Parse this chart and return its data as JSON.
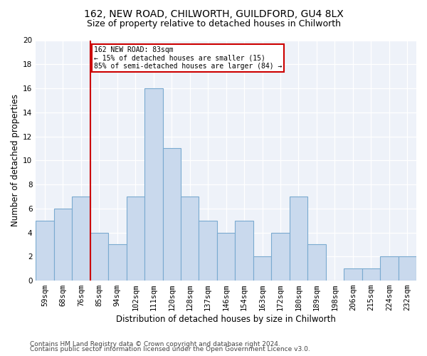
{
  "title": "162, NEW ROAD, CHILWORTH, GUILDFORD, GU4 8LX",
  "subtitle": "Size of property relative to detached houses in Chilworth",
  "xlabel": "Distribution of detached houses by size in Chilworth",
  "ylabel": "Number of detached properties",
  "categories": [
    "59sqm",
    "68sqm",
    "76sqm",
    "85sqm",
    "94sqm",
    "102sqm",
    "111sqm",
    "120sqm",
    "128sqm",
    "137sqm",
    "146sqm",
    "154sqm",
    "163sqm",
    "172sqm",
    "180sqm",
    "189sqm",
    "198sqm",
    "206sqm",
    "215sqm",
    "224sqm",
    "232sqm"
  ],
  "values": [
    5,
    6,
    7,
    4,
    3,
    7,
    16,
    11,
    7,
    5,
    4,
    5,
    2,
    4,
    7,
    3,
    0,
    1,
    1,
    2,
    2
  ],
  "bar_color": "#c9d9ed",
  "bar_edge_color": "#7aaad0",
  "bar_width": 1.0,
  "vline_x": 2.5,
  "vline_color": "#cc0000",
  "annotation_text": "162 NEW ROAD: 83sqm\n← 15% of detached houses are smaller (15)\n85% of semi-detached houses are larger (84) →",
  "annotation_box_color": "#cc0000",
  "ylim": [
    0,
    20
  ],
  "yticks": [
    0,
    2,
    4,
    6,
    8,
    10,
    12,
    14,
    16,
    18,
    20
  ],
  "background_color": "#eef2f9",
  "footer1": "Contains HM Land Registry data © Crown copyright and database right 2024.",
  "footer2": "Contains public sector information licensed under the Open Government Licence v3.0.",
  "title_fontsize": 10,
  "subtitle_fontsize": 9,
  "xlabel_fontsize": 8.5,
  "ylabel_fontsize": 8.5,
  "tick_fontsize": 7.5,
  "footer_fontsize": 6.5
}
